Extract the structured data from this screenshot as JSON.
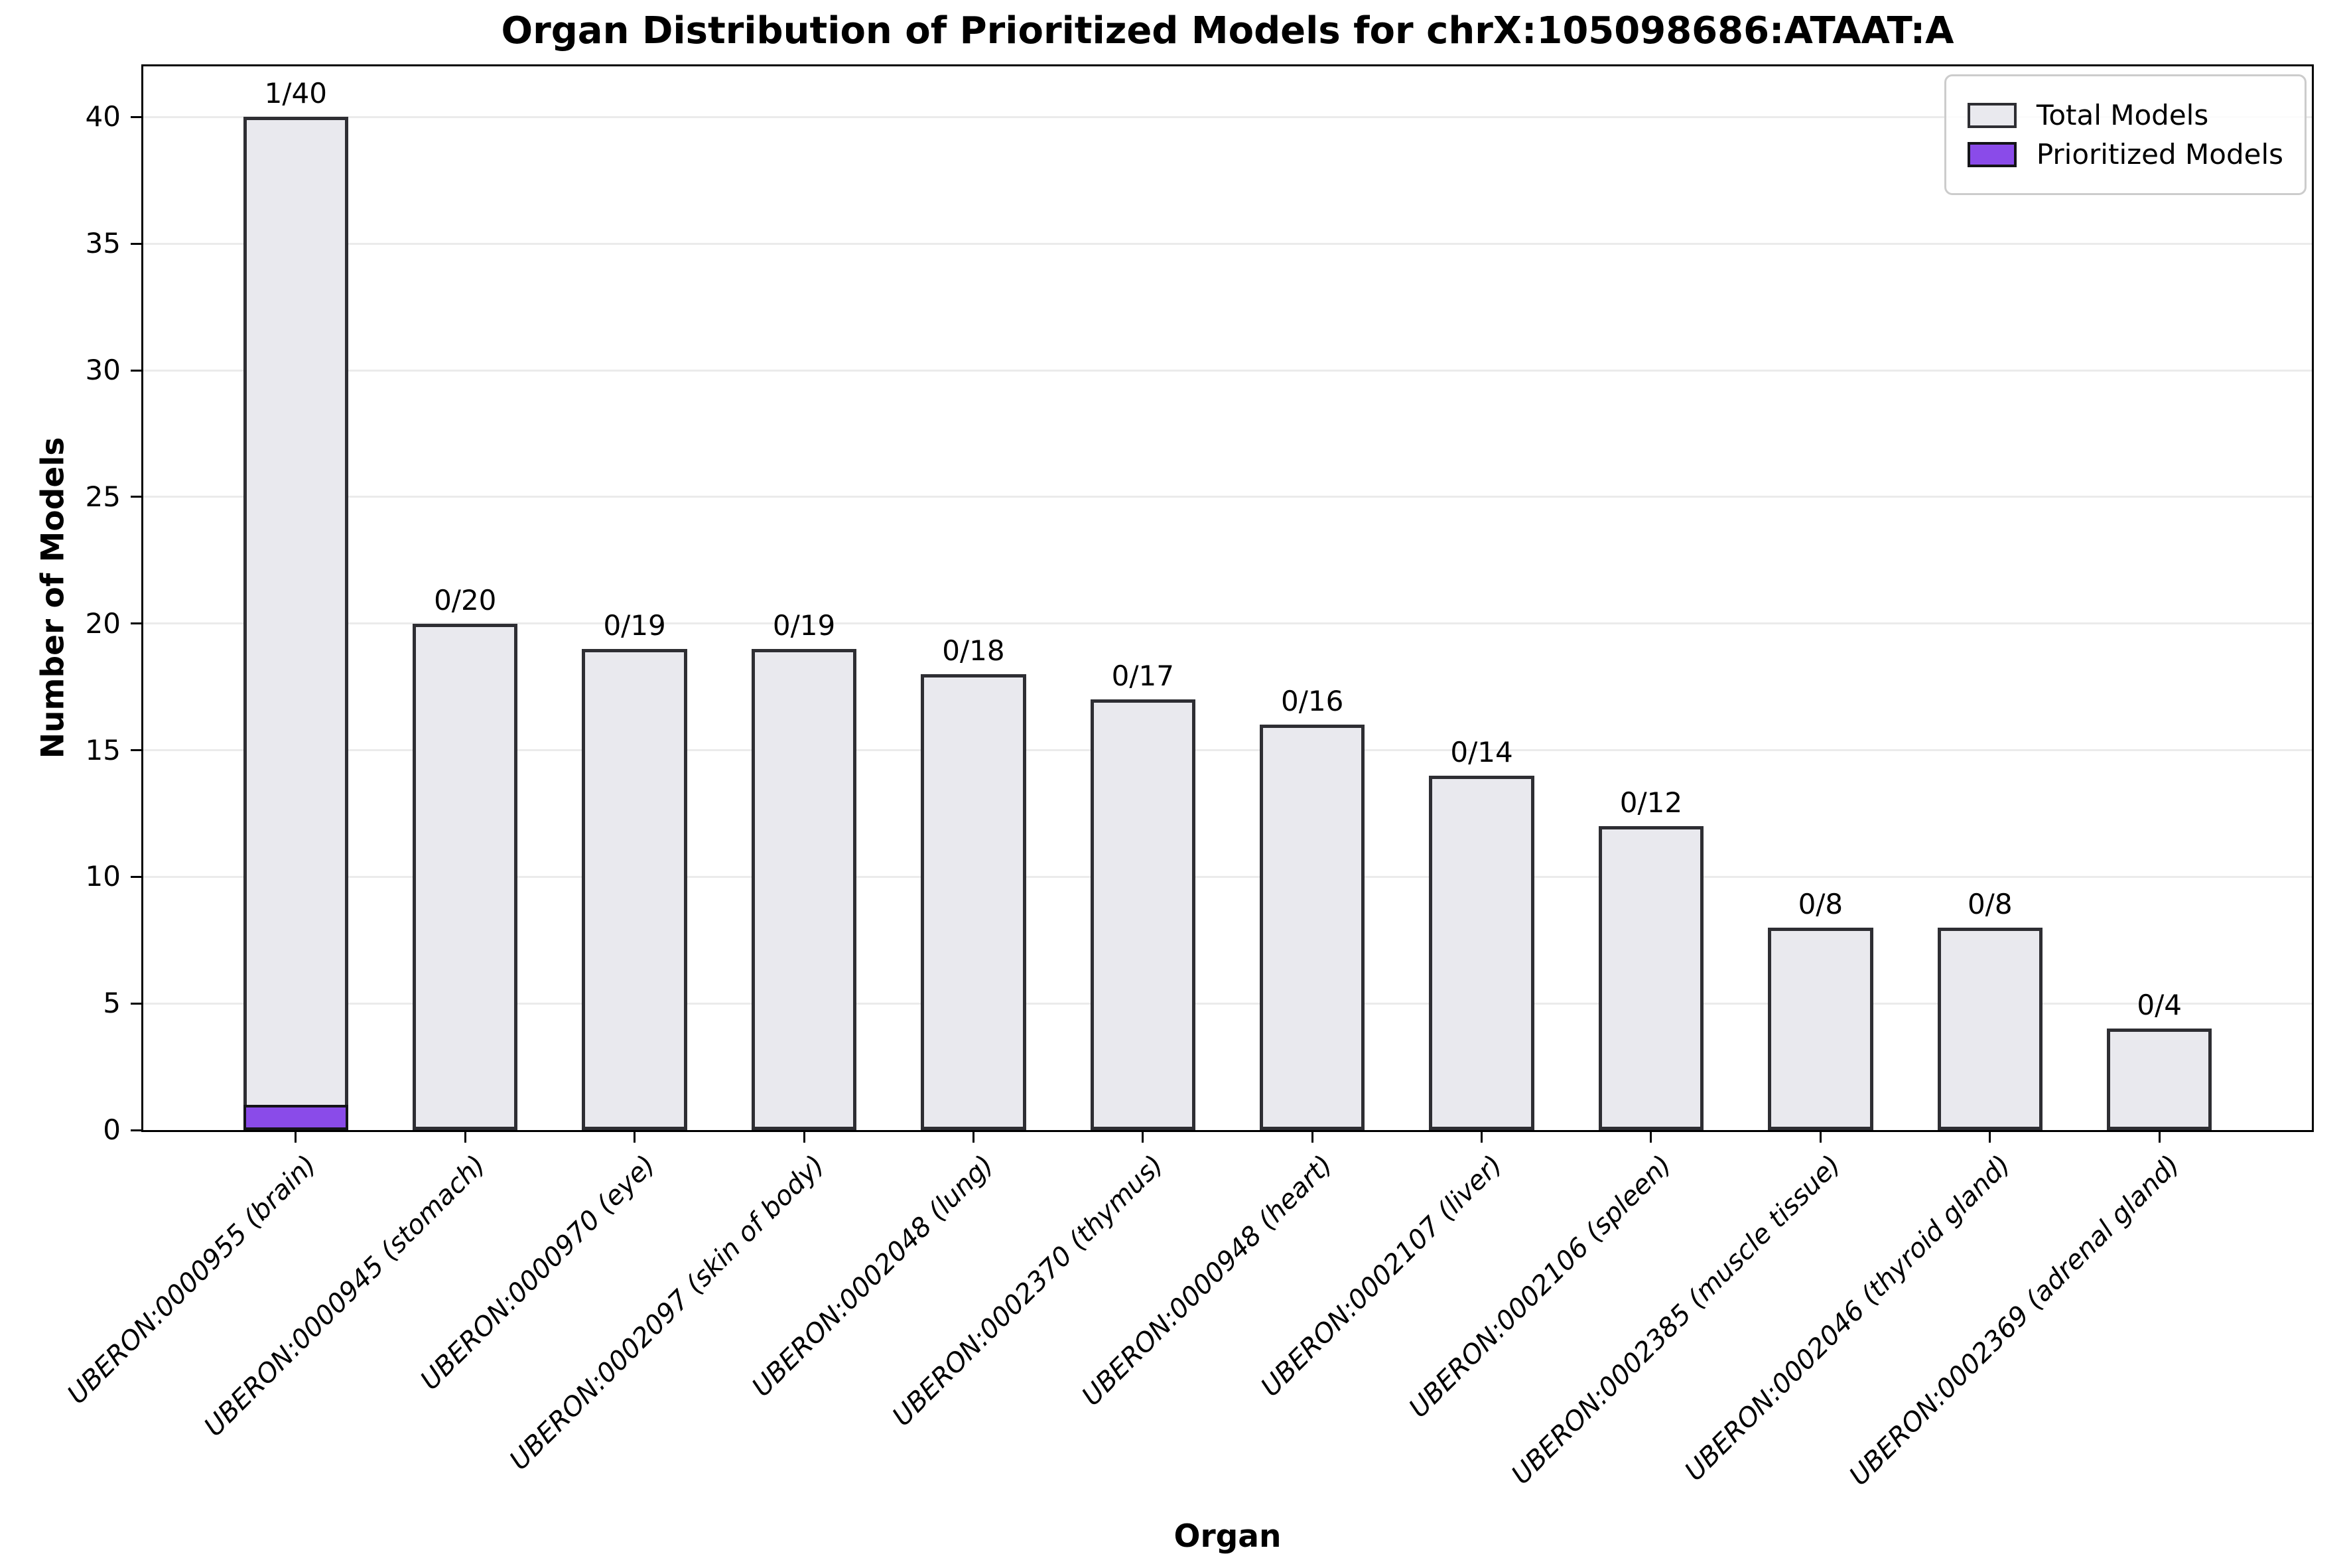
{
  "chart_data": {
    "type": "bar",
    "title": "Organ Distribution of Prioritized Models for chrX:105098686:ATAAT:A",
    "xlabel": "Organ",
    "ylabel": "Number of Models",
    "ylim": [
      0,
      42
    ],
    "yticks": [
      0,
      5,
      10,
      15,
      20,
      25,
      30,
      35,
      40
    ],
    "grid": "horizontal",
    "legend_position": "upper right",
    "categories": [
      "UBERON:0000955 (brain)",
      "UBERON:0000945 (stomach)",
      "UBERON:0000970 (eye)",
      "UBERON:0002097 (skin of body)",
      "UBERON:0002048 (lung)",
      "UBERON:0002370 (thymus)",
      "UBERON:0000948 (heart)",
      "UBERON:0002107 (liver)",
      "UBERON:0002106 (spleen)",
      "UBERON:0002385 (muscle tissue)",
      "UBERON:0002046 (thyroid gland)",
      "UBERON:0002369 (adrenal gland)"
    ],
    "series": [
      {
        "name": "Total Models",
        "values": [
          40,
          20,
          19,
          19,
          18,
          17,
          16,
          14,
          12,
          8,
          8,
          4
        ],
        "color": "#e9e9ee",
        "edge": "#2e2e33"
      },
      {
        "name": "Prioritized Models",
        "values": [
          1,
          0,
          0,
          0,
          0,
          0,
          0,
          0,
          0,
          0,
          0,
          0
        ],
        "color": "#8a4be9",
        "edge": "#141418"
      }
    ],
    "bar_labels": [
      "1/40",
      "0/20",
      "0/19",
      "0/19",
      "0/18",
      "0/17",
      "0/16",
      "0/14",
      "0/12",
      "0/8",
      "0/8",
      "0/4"
    ]
  },
  "legend": {
    "items": [
      {
        "label": "Total Models",
        "color": "#e9e9ee",
        "edge": "#2e2e33"
      },
      {
        "label": "Prioritized Models",
        "color": "#8a4be9",
        "edge": "#141418"
      }
    ]
  },
  "colors": {
    "background": "#ffffff",
    "total_bar_fill": "#e9e9ee",
    "prioritized_bar_fill": "#8a4be9",
    "bar_edge": "#2e2e33",
    "gridline": "#ebebeb",
    "spine": "#000000",
    "legend_border": "#cccccc"
  }
}
